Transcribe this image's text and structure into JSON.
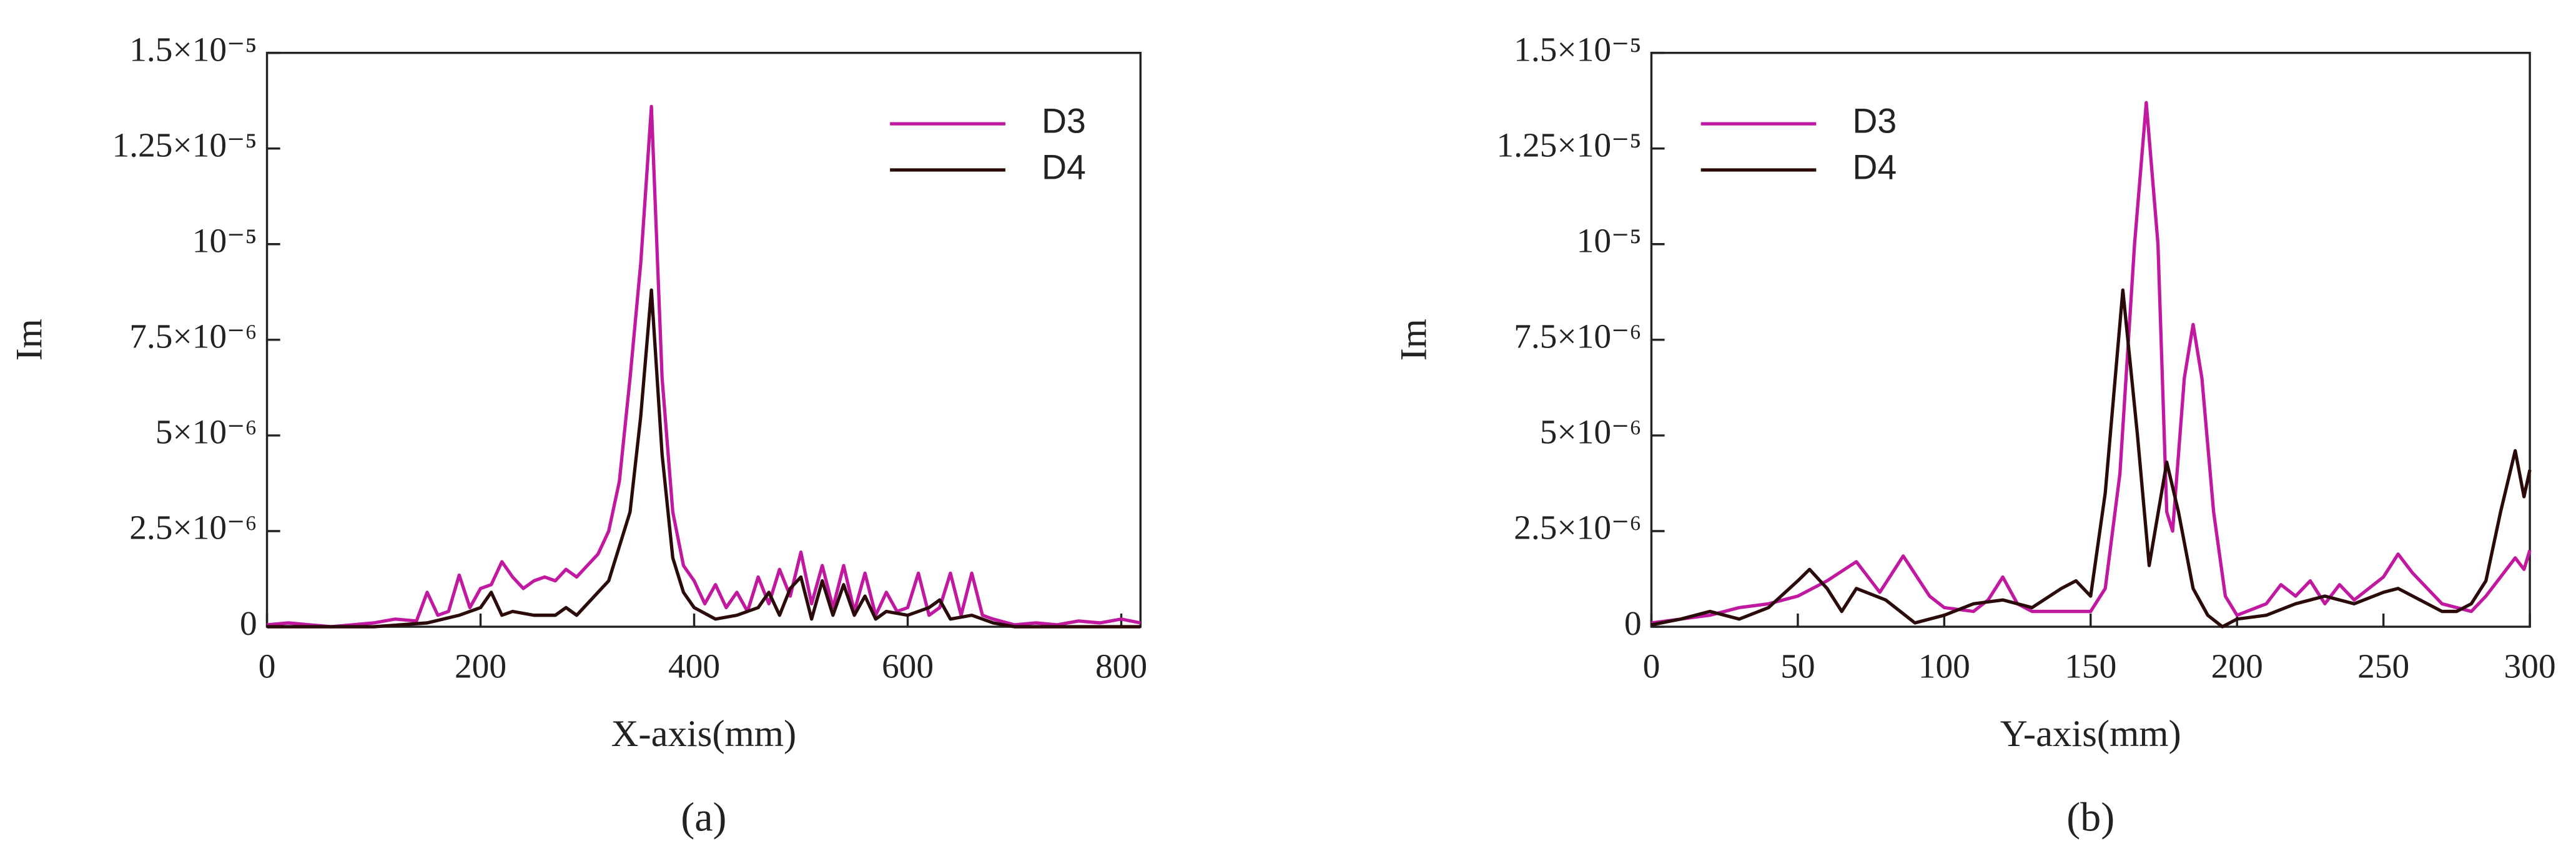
{
  "chart_data": [
    {
      "type": "line",
      "panel": "(a)",
      "xlabel": "X-axis(mm)",
      "ylabel": "Im",
      "legend": "upper right",
      "xlim": [
        0,
        818
      ],
      "xticks": [
        0,
        200,
        400,
        600,
        800
      ],
      "ylim": [
        0,
        1.5e-05
      ],
      "yticks": [
        0,
        {
          "value": 2.5e-06,
          "label": "2.5×10⁻⁶"
        },
        {
          "value": 5e-06,
          "label": "5×10⁻⁶"
        },
        {
          "value": 7.5e-06,
          "label": "7.5×10⁻⁶"
        },
        {
          "value": 1e-05,
          "label": "10⁻⁵"
        },
        {
          "value": 1.25e-05,
          "label": "1.25×10⁻⁵"
        },
        {
          "value": 1.5e-05,
          "label": "1.5×10⁻⁵"
        }
      ],
      "series": [
        {
          "name": "D3",
          "color": "#c0189f",
          "x": [
            0,
            20,
            40,
            60,
            80,
            100,
            120,
            140,
            150,
            160,
            170,
            180,
            190,
            200,
            210,
            220,
            230,
            240,
            250,
            260,
            270,
            280,
            290,
            300,
            310,
            320,
            330,
            340,
            350,
            360,
            370,
            380,
            390,
            400,
            410,
            420,
            430,
            440,
            450,
            460,
            470,
            480,
            490,
            500,
            510,
            520,
            530,
            540,
            550,
            560,
            570,
            580,
            590,
            600,
            610,
            620,
            630,
            640,
            650,
            660,
            670,
            680,
            700,
            720,
            740,
            760,
            780,
            800,
            818
          ],
          "values": [
            5e-08,
            1e-07,
            5e-08,
            0,
            5e-08,
            1e-07,
            2e-07,
            1.5e-07,
            9e-07,
            3e-07,
            4e-07,
            1.35e-06,
            5e-07,
            1e-06,
            1.1e-06,
            1.7e-06,
            1.3e-06,
            1e-06,
            1.2e-06,
            1.3e-06,
            1.2e-06,
            1.5e-06,
            1.3e-06,
            1.6e-06,
            1.9e-06,
            2.5e-06,
            3.8e-06,
            6.5e-06,
            9.5e-06,
            1.36e-05,
            6.5e-06,
            3e-06,
            1.6e-06,
            1.2e-06,
            6e-07,
            1.1e-06,
            5e-07,
            9e-07,
            4e-07,
            1.3e-06,
            6e-07,
            1.5e-06,
            8e-07,
            1.95e-06,
            6e-07,
            1.6e-06,
            5e-07,
            1.6e-06,
            4e-07,
            1.4e-06,
            3e-07,
            9e-07,
            4e-07,
            5e-07,
            1.4e-06,
            3e-07,
            5e-07,
            1.4e-06,
            3e-07,
            1.4e-06,
            3e-07,
            2e-07,
            5e-08,
            1e-07,
            5e-08,
            1.5e-07,
            1e-07,
            2e-07,
            1e-07
          ]
        },
        {
          "name": "D4",
          "color": "#2b0a0a",
          "x": [
            0,
            100,
            150,
            180,
            200,
            210,
            220,
            230,
            250,
            270,
            280,
            290,
            300,
            320,
            340,
            350,
            360,
            370,
            380,
            390,
            400,
            420,
            440,
            460,
            470,
            480,
            490,
            500,
            510,
            520,
            530,
            540,
            550,
            560,
            570,
            580,
            600,
            620,
            630,
            640,
            660,
            680,
            700,
            818
          ],
          "values": [
            0,
            0,
            1e-07,
            3e-07,
            5e-07,
            9e-07,
            3e-07,
            4e-07,
            3e-07,
            3e-07,
            5e-07,
            3e-07,
            6e-07,
            1.2e-06,
            3e-06,
            5.5e-06,
            8.8e-06,
            4.5e-06,
            1.8e-06,
            9e-07,
            5e-07,
            2e-07,
            3e-07,
            5e-07,
            9e-07,
            3e-07,
            1e-06,
            1.3e-06,
            2e-07,
            1.2e-06,
            3e-07,
            1.1e-06,
            3e-07,
            8e-07,
            2e-07,
            4e-07,
            3e-07,
            5e-07,
            7e-07,
            2e-07,
            3e-07,
            1e-07,
            0,
            0
          ]
        }
      ]
    },
    {
      "type": "line",
      "panel": "(b)",
      "xlabel": "Y-axis(mm)",
      "ylabel": "Im",
      "legend": "upper left",
      "xlim": [
        0,
        300
      ],
      "xticks": [
        0,
        50,
        100,
        150,
        200,
        250,
        300
      ],
      "ylim": [
        0,
        1.5e-05
      ],
      "yticks": [
        0,
        {
          "value": 2.5e-06,
          "label": "2.5×10⁻⁶"
        },
        {
          "value": 5e-06,
          "label": "5×10⁻⁶"
        },
        {
          "value": 7.5e-06,
          "label": "7.5×10⁻⁶"
        },
        {
          "value": 1e-05,
          "label": "10⁻⁵"
        },
        {
          "value": 1.25e-05,
          "label": "1.25×10⁻⁵"
        },
        {
          "value": 1.5e-05,
          "label": "1.5×10⁻⁵"
        }
      ],
      "series": [
        {
          "name": "D3",
          "color": "#c0189f",
          "x": [
            0,
            10,
            20,
            30,
            40,
            50,
            60,
            70,
            78,
            86,
            95,
            100,
            110,
            115,
            120,
            125,
            130,
            140,
            150,
            155,
            160,
            165,
            169,
            173,
            176,
            178,
            182,
            185,
            188,
            192,
            196,
            200,
            210,
            215,
            220,
            225,
            230,
            235,
            240,
            245,
            250,
            255,
            260,
            265,
            270,
            275,
            280,
            285,
            290,
            295,
            298,
            300
          ],
          "values": [
            1e-07,
            2e-07,
            3e-07,
            5e-07,
            6e-07,
            8e-07,
            1.2e-06,
            1.7e-06,
            9e-07,
            1.85e-06,
            8e-07,
            5e-07,
            4e-07,
            7e-07,
            1.3e-06,
            6e-07,
            4e-07,
            4e-07,
            4e-07,
            1e-06,
            4e-06,
            1e-05,
            1.37e-05,
            1e-05,
            3e-06,
            2.5e-06,
            6.5e-06,
            7.9e-06,
            6.5e-06,
            3e-06,
            8e-07,
            3e-07,
            6e-07,
            1.1e-06,
            8e-07,
            1.2e-06,
            6e-07,
            1.1e-06,
            7e-07,
            1e-06,
            1.3e-06,
            1.9e-06,
            1.4e-06,
            1e-06,
            6e-07,
            5e-07,
            4e-07,
            8e-07,
            1.3e-06,
            1.8e-06,
            1.5e-06,
            2e-06
          ]
        },
        {
          "name": "D4",
          "color": "#2b0a0a",
          "x": [
            0,
            10,
            20,
            30,
            40,
            50,
            54,
            60,
            65,
            70,
            80,
            90,
            100,
            110,
            120,
            130,
            140,
            145,
            150,
            155,
            161,
            166,
            170,
            176,
            180,
            185,
            190,
            195,
            200,
            210,
            220,
            230,
            240,
            250,
            255,
            260,
            270,
            275,
            280,
            285,
            290,
            295,
            298,
            300
          ],
          "values": [
            5e-08,
            2e-07,
            4e-07,
            2e-07,
            5e-07,
            1.2e-06,
            1.5e-06,
            1e-06,
            4e-07,
            1e-06,
            7e-07,
            1e-07,
            3e-07,
            6e-07,
            7e-07,
            5e-07,
            1e-06,
            1.2e-06,
            8e-07,
            3.5e-06,
            8.8e-06,
            5e-06,
            1.6e-06,
            4.3e-06,
            3e-06,
            1e-06,
            3e-07,
            0,
            2e-07,
            3e-07,
            6e-07,
            8e-07,
            6e-07,
            9e-07,
            1e-06,
            8e-07,
            4e-07,
            4e-07,
            6e-07,
            1.2e-06,
            3e-06,
            4.6e-06,
            3.4e-06,
            4.1e-06
          ]
        }
      ]
    }
  ]
}
